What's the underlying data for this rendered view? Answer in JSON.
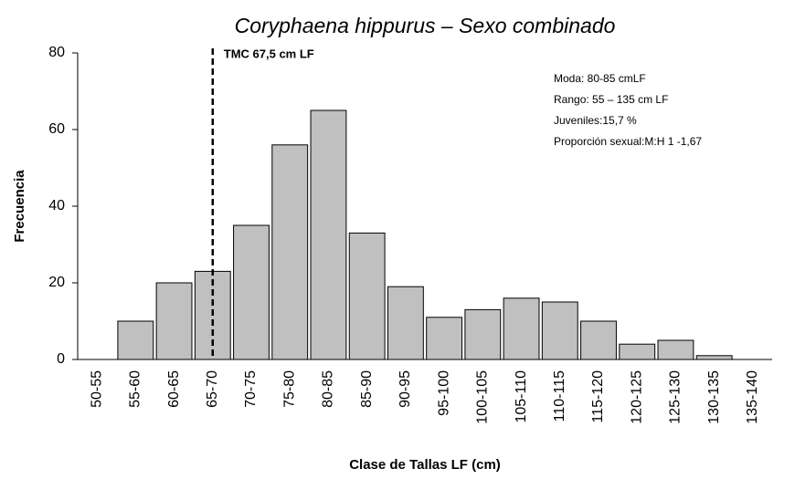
{
  "chart_data": {
    "type": "bar",
    "title": "Coryphaena hippurus – Sexo combinado",
    "x_label": "Clase de Tallas LF (cm)",
    "y_label": "Frecuencia",
    "categories": [
      "50-55",
      "55-60",
      "60-65",
      "65-70",
      "70-75",
      "75-80",
      "80-85",
      "85-90",
      "90-95",
      "95-100",
      "100-105",
      "105-110",
      "110-115",
      "115-120",
      "120-125",
      "125-130",
      "130-135",
      "135-140"
    ],
    "values": [
      0,
      10,
      20,
      23,
      35,
      56,
      65,
      33,
      19,
      11,
      13,
      16,
      15,
      10,
      4,
      5,
      1,
      0
    ],
    "color": "#c0c0c0",
    "ylim": [
      0,
      80
    ],
    "yticks": [
      0,
      20,
      40,
      60,
      80
    ],
    "grid": false,
    "vline": {
      "value": 67.5,
      "label": "TMC 67,5 cm LF"
    },
    "class_start": 50,
    "class_width": 5,
    "annotations": [
      "Moda:  80-85 cmLF",
      "Rango: 55 – 135 cm LF",
      "Juveniles:15,7  %",
      "Proporción sexual:M:H 1 -1,67"
    ]
  }
}
